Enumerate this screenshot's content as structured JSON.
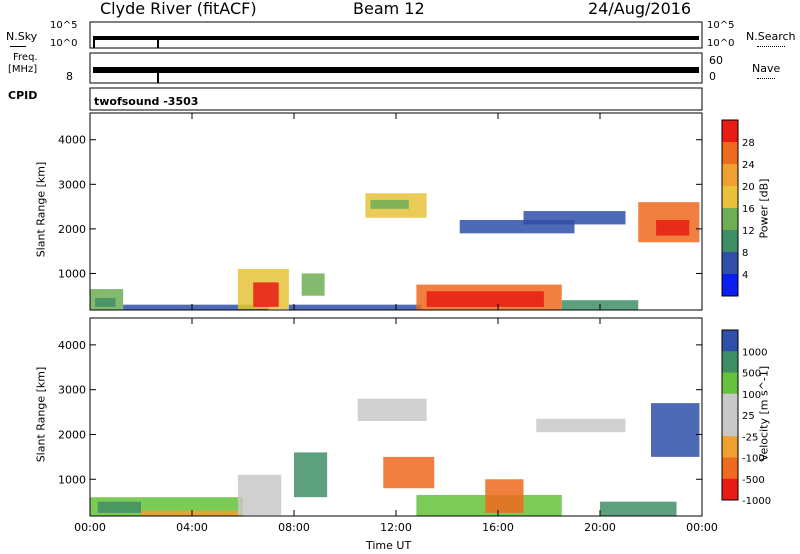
{
  "header": {
    "station": "Clyde River (fitACF)",
    "beam": "Beam 12",
    "date": "24/Aug/2016"
  },
  "strip_panels": {
    "nsky": {
      "label": "N.Sky",
      "ticks": [
        "10^5",
        "10^0"
      ]
    },
    "nsearch": {
      "label": "N.Search",
      "ticks": [
        "10^5",
        "10^0"
      ]
    },
    "freq": {
      "label_line1": "Freq.",
      "label_line2": "[MHz]",
      "ticks": [
        "8"
      ]
    },
    "nave": {
      "label": "Nave",
      "ticks": [
        "60",
        "0"
      ]
    },
    "cpid": {
      "label": "CPID",
      "value": "twofsound -3503"
    }
  },
  "colors": {
    "power": [
      "#0a1ef0",
      "#2f4fa8",
      "#3f8f66",
      "#6fae55",
      "#e8c23a",
      "#f0a030",
      "#ee6a1e",
      "#e81c14"
    ],
    "velocity": [
      "#e81c14",
      "#ee6a1e",
      "#f0a030",
      "#c8c8c8",
      "#c8c8c8",
      "#66c23a",
      "#3f8f66",
      "#2f4fa8"
    ]
  },
  "chart_data": [
    {
      "type": "heatmap",
      "name_ref": "power",
      "xlabel": "",
      "ylabel": "Slant Range [km]",
      "x_ticks": [
        "00:00",
        "04:00",
        "08:00",
        "12:00",
        "16:00",
        "20:00",
        "00:00"
      ],
      "y_ticks": [
        1000,
        2000,
        3000,
        4000
      ],
      "xlim": [
        0,
        24
      ],
      "ylim": [
        180,
        4600
      ],
      "colorbar_label": "Power [dB]",
      "colorbar_ticks": [
        "28",
        "24",
        "20",
        "16",
        "12",
        "8",
        "4"
      ],
      "regions": [
        {
          "t0": 0.0,
          "t1": 1.3,
          "r0": 180,
          "r1": 650,
          "level": 3
        },
        {
          "t0": 0.2,
          "t1": 1.0,
          "r0": 250,
          "r1": 450,
          "level": 2
        },
        {
          "t0": 1.3,
          "t1": 7.0,
          "r0": 180,
          "r1": 300,
          "level": 1
        },
        {
          "t0": 5.8,
          "t1": 7.8,
          "r0": 200,
          "r1": 1100,
          "level": 4
        },
        {
          "t0": 6.4,
          "t1": 7.4,
          "r0": 250,
          "r1": 800,
          "level": 7
        },
        {
          "t0": 7.8,
          "t1": 13.0,
          "r0": 180,
          "r1": 300,
          "level": 1
        },
        {
          "t0": 8.3,
          "t1": 9.2,
          "r0": 500,
          "r1": 1000,
          "level": 3
        },
        {
          "t0": 10.8,
          "t1": 13.2,
          "r0": 2250,
          "r1": 2800,
          "level": 4
        },
        {
          "t0": 11.0,
          "t1": 12.5,
          "r0": 2450,
          "r1": 2650,
          "level": 3
        },
        {
          "t0": 12.8,
          "t1": 18.5,
          "r0": 180,
          "r1": 750,
          "level": 6
        },
        {
          "t0": 13.2,
          "t1": 17.8,
          "r0": 250,
          "r1": 600,
          "level": 7
        },
        {
          "t0": 18.5,
          "t1": 21.5,
          "r0": 180,
          "r1": 400,
          "level": 2
        },
        {
          "t0": 21.5,
          "t1": 23.9,
          "r0": 1700,
          "r1": 2600,
          "level": 6
        },
        {
          "t0": 22.2,
          "t1": 23.5,
          "r0": 1850,
          "r1": 2200,
          "level": 7
        },
        {
          "t0": 14.5,
          "t1": 19.0,
          "r0": 1900,
          "r1": 2200,
          "level": 1
        },
        {
          "t0": 17.0,
          "t1": 21.0,
          "r0": 2100,
          "r1": 2400,
          "level": 1
        }
      ]
    },
    {
      "type": "heatmap",
      "name_ref": "velocity",
      "xlabel": "Time UT",
      "ylabel": "Slant Range [km]",
      "x_ticks": [
        "00:00",
        "04:00",
        "08:00",
        "12:00",
        "16:00",
        "20:00",
        "00:00"
      ],
      "y_ticks": [
        1000,
        2000,
        3000,
        4000
      ],
      "xlim": [
        0,
        24
      ],
      "ylim": [
        180,
        4600
      ],
      "colorbar_label": "Velocity [m s^-1]",
      "colorbar_ticks": [
        "1000",
        "500",
        "100",
        "25",
        "-25",
        "-100",
        "-500",
        "-1000"
      ],
      "regions": [
        {
          "t0": 0.0,
          "t1": 6.0,
          "r0": 180,
          "r1": 600,
          "level": 5
        },
        {
          "t0": 0.3,
          "t1": 2.0,
          "r0": 250,
          "r1": 500,
          "level": 6
        },
        {
          "t0": 2.0,
          "t1": 6.0,
          "r0": 180,
          "r1": 300,
          "level": 2
        },
        {
          "t0": 5.8,
          "t1": 7.5,
          "r0": 200,
          "r1": 1100,
          "level": 3
        },
        {
          "t0": 8.0,
          "t1": 9.3,
          "r0": 600,
          "r1": 1600,
          "level": 6
        },
        {
          "t0": 10.5,
          "t1": 13.2,
          "r0": 2300,
          "r1": 2800,
          "level": 3
        },
        {
          "t0": 11.5,
          "t1": 13.5,
          "r0": 800,
          "r1": 1500,
          "level": 1
        },
        {
          "t0": 12.8,
          "t1": 18.5,
          "r0": 180,
          "r1": 650,
          "level": 5
        },
        {
          "t0": 15.5,
          "t1": 17.0,
          "r0": 250,
          "r1": 1000,
          "level": 1
        },
        {
          "t0": 17.5,
          "t1": 21.0,
          "r0": 2050,
          "r1": 2350,
          "level": 3
        },
        {
          "t0": 22.0,
          "t1": 23.9,
          "r0": 1500,
          "r1": 2700,
          "level": 7
        },
        {
          "t0": 20.0,
          "t1": 23.0,
          "r0": 180,
          "r1": 500,
          "level": 6
        }
      ]
    }
  ]
}
